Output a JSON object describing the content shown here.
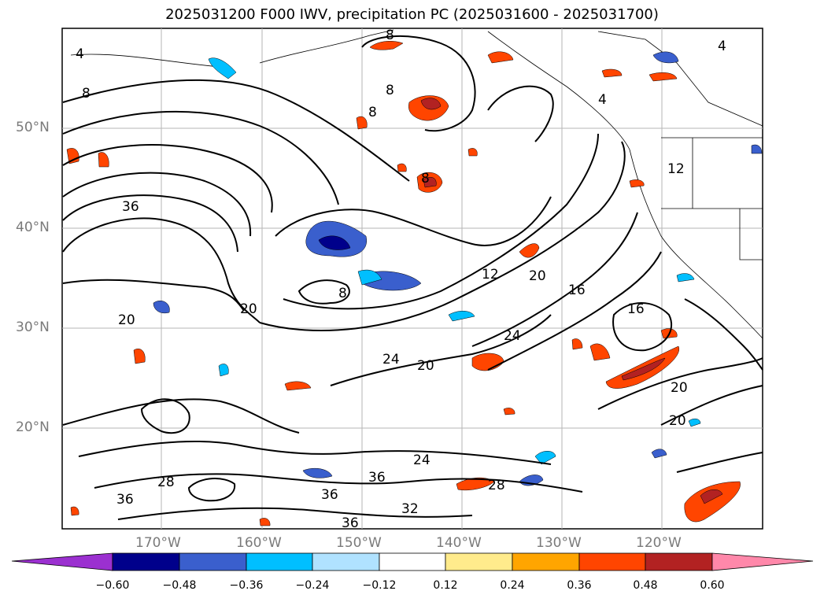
{
  "title": "2025031200 F000 IWV, precipitation PC (2025031600 - 2025031700)",
  "lat_labels": [
    "50°N",
    "40°N",
    "30°N",
    "20°N"
  ],
  "lon_labels": [
    "170°W",
    "160°W",
    "150°W",
    "140°W",
    "130°W",
    "120°W"
  ],
  "contour_labels": [
    "4",
    "4",
    "4",
    "8",
    "8",
    "8",
    "8",
    "8",
    "8",
    "12",
    "12",
    "16",
    "16",
    "20",
    "20",
    "20",
    "20",
    "20",
    "20",
    "24",
    "24",
    "24",
    "28",
    "28",
    "32",
    "36",
    "36",
    "36",
    "36",
    "36"
  ],
  "colorbar": {
    "ticks": [
      "−0.60",
      "−0.48",
      "−0.36",
      "−0.24",
      "−0.12",
      "0.12",
      "0.24",
      "0.36",
      "0.48",
      "0.60"
    ],
    "colors": [
      "#9b30d0",
      "#00008b",
      "#3a5fcd",
      "#00bfff",
      "#b0e2ff",
      "#ffffff",
      "#ffeb8c",
      "#ffa500",
      "#ff4500",
      "#b22222",
      "#ff88aa"
    ]
  }
}
